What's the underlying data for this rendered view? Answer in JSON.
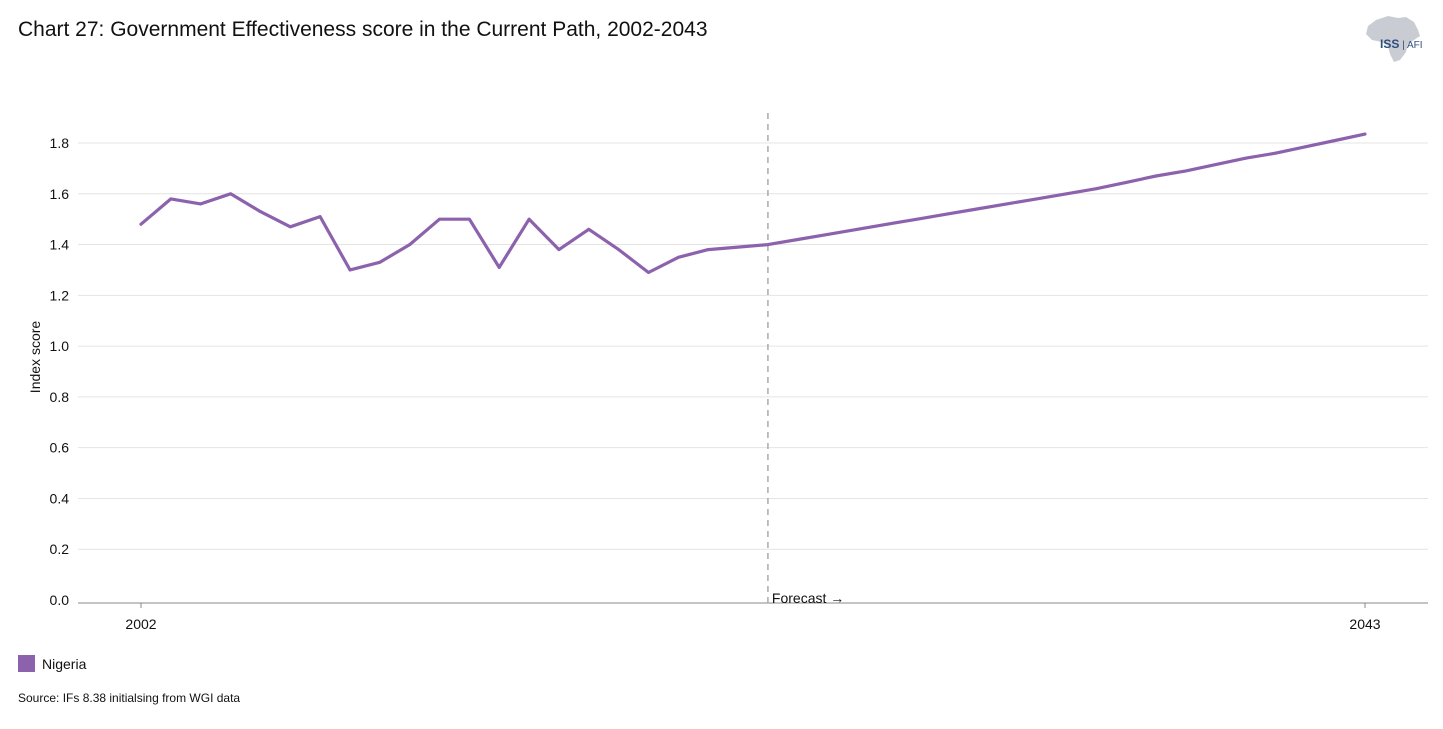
{
  "header": {
    "title": "Chart 27: Government Effectiveness score in the Current Path, 2002-2043",
    "logo_iss": "ISS",
    "logo_afi": "AFI"
  },
  "footer": {
    "source": "Source: IFs 8.38 initialsing from WGI data"
  },
  "colors": {
    "series": "#8c62ad",
    "grid": "#e4e4e4",
    "axis": "#888888",
    "forecast_line": "#aaaaaa"
  },
  "chart_data": {
    "type": "line",
    "title": "Chart 27: Government Effectiveness score in the Current Path, 2002-2043",
    "xlabel": "",
    "ylabel": "Index score",
    "xlim": [
      2002,
      2043
    ],
    "ylim": [
      0,
      1.8
    ],
    "y_ticks": [
      "0.0",
      "0.2",
      "0.4",
      "0.6",
      "0.8",
      "1.0",
      "1.2",
      "1.4",
      "1.6",
      "1.8"
    ],
    "x_ticks": [
      "2002",
      "2043"
    ],
    "grid": true,
    "legend_position": "bottom-left",
    "forecast": {
      "x": 2023,
      "label": "Forecast →"
    },
    "series": [
      {
        "name": "Nigeria",
        "color": "#8c62ad",
        "x": [
          2002,
          2003,
          2004,
          2005,
          2006,
          2007,
          2008,
          2009,
          2010,
          2011,
          2012,
          2013,
          2014,
          2015,
          2016,
          2017,
          2018,
          2019,
          2020,
          2021,
          2022,
          2023,
          2024,
          2025,
          2026,
          2027,
          2028,
          2029,
          2030,
          2031,
          2032,
          2033,
          2034,
          2035,
          2036,
          2037,
          2038,
          2039,
          2040,
          2041,
          2042,
          2043
        ],
        "values": [
          1.48,
          1.58,
          1.56,
          1.6,
          1.53,
          1.47,
          1.51,
          1.3,
          1.33,
          1.4,
          1.5,
          1.5,
          1.31,
          1.5,
          1.38,
          1.46,
          1.38,
          1.29,
          1.35,
          1.38,
          1.39,
          1.4,
          1.42,
          1.44,
          1.46,
          1.48,
          1.5,
          1.52,
          1.54,
          1.56,
          1.58,
          1.6,
          1.62,
          1.645,
          1.67,
          1.69,
          1.715,
          1.74,
          1.76,
          1.785,
          1.81,
          1.835
        ]
      }
    ]
  }
}
